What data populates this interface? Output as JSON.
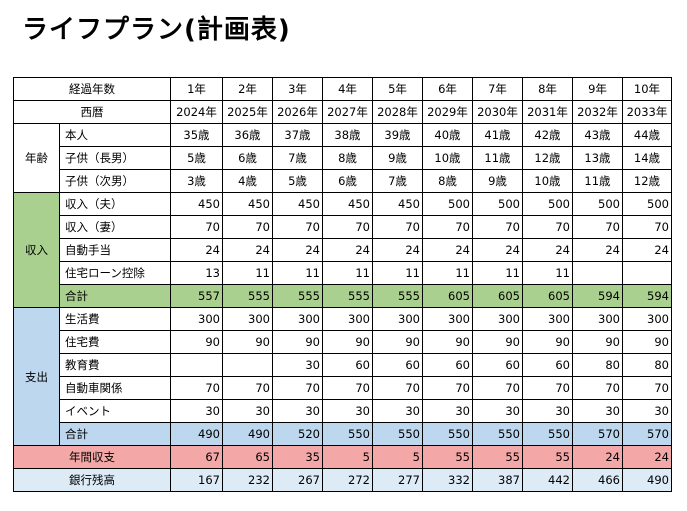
{
  "title": "ライフプラン(計画表)",
  "colors": {
    "income": "#a9d08e",
    "expense": "#bdd7ee",
    "annual_balance": "#f4a7a7",
    "bank_balance": "#ddebf7"
  },
  "header": {
    "elapsed_label": "経過年数",
    "elapsed": [
      "1年",
      "2年",
      "3年",
      "4年",
      "5年",
      "6年",
      "7年",
      "8年",
      "9年",
      "10年"
    ],
    "year_label": "西暦",
    "years": [
      "2024年",
      "2025年",
      "2026年",
      "2027年",
      "2028年",
      "2029年",
      "2030年",
      "2031年",
      "2032年",
      "2033年"
    ]
  },
  "age": {
    "section": "年齢",
    "rows": [
      {
        "label": "本人",
        "values": [
          "35歳",
          "36歳",
          "37歳",
          "38歳",
          "39歳",
          "40歳",
          "41歳",
          "42歳",
          "43歳",
          "44歳"
        ]
      },
      {
        "label": "子供（長男）",
        "values": [
          "5歳",
          "6歳",
          "7歳",
          "8歳",
          "9歳",
          "10歳",
          "11歳",
          "12歳",
          "13歳",
          "14歳"
        ]
      },
      {
        "label": "子供（次男）",
        "values": [
          "3歳",
          "4歳",
          "5歳",
          "6歳",
          "7歳",
          "8歳",
          "9歳",
          "10歳",
          "11歳",
          "12歳"
        ]
      }
    ]
  },
  "income": {
    "section": "収入",
    "rows": [
      {
        "label": "収入（夫）",
        "values": [
          "450",
          "450",
          "450",
          "450",
          "450",
          "500",
          "500",
          "500",
          "500",
          "500"
        ]
      },
      {
        "label": "収入（妻）",
        "values": [
          "70",
          "70",
          "70",
          "70",
          "70",
          "70",
          "70",
          "70",
          "70",
          "70"
        ]
      },
      {
        "label": "自動手当",
        "values": [
          "24",
          "24",
          "24",
          "24",
          "24",
          "24",
          "24",
          "24",
          "24",
          "24"
        ]
      },
      {
        "label": "住宅ローン控除",
        "values": [
          "13",
          "11",
          "11",
          "11",
          "11",
          "11",
          "11",
          "11",
          "",
          ""
        ]
      }
    ],
    "total": {
      "label": "合計",
      "values": [
        "557",
        "555",
        "555",
        "555",
        "555",
        "605",
        "605",
        "605",
        "594",
        "594"
      ]
    }
  },
  "expense": {
    "section": "支出",
    "rows": [
      {
        "label": "生活費",
        "values": [
          "300",
          "300",
          "300",
          "300",
          "300",
          "300",
          "300",
          "300",
          "300",
          "300"
        ]
      },
      {
        "label": "住宅費",
        "values": [
          "90",
          "90",
          "90",
          "90",
          "90",
          "90",
          "90",
          "90",
          "90",
          "90"
        ]
      },
      {
        "label": "教育費",
        "values": [
          "",
          "",
          "30",
          "60",
          "60",
          "60",
          "60",
          "60",
          "80",
          "80"
        ]
      },
      {
        "label": "自動車関係",
        "values": [
          "70",
          "70",
          "70",
          "70",
          "70",
          "70",
          "70",
          "70",
          "70",
          "70"
        ]
      },
      {
        "label": "イベント",
        "values": [
          "30",
          "30",
          "30",
          "30",
          "30",
          "30",
          "30",
          "30",
          "30",
          "30"
        ]
      }
    ],
    "total": {
      "label": "合計",
      "values": [
        "490",
        "490",
        "520",
        "550",
        "550",
        "550",
        "550",
        "550",
        "570",
        "570"
      ]
    }
  },
  "annual": {
    "label": "年間収支",
    "values": [
      "67",
      "65",
      "35",
      "5",
      "5",
      "55",
      "55",
      "55",
      "24",
      "24"
    ]
  },
  "bank": {
    "label": "銀行残高",
    "values": [
      "167",
      "232",
      "267",
      "272",
      "277",
      "332",
      "387",
      "442",
      "466",
      "490"
    ]
  }
}
